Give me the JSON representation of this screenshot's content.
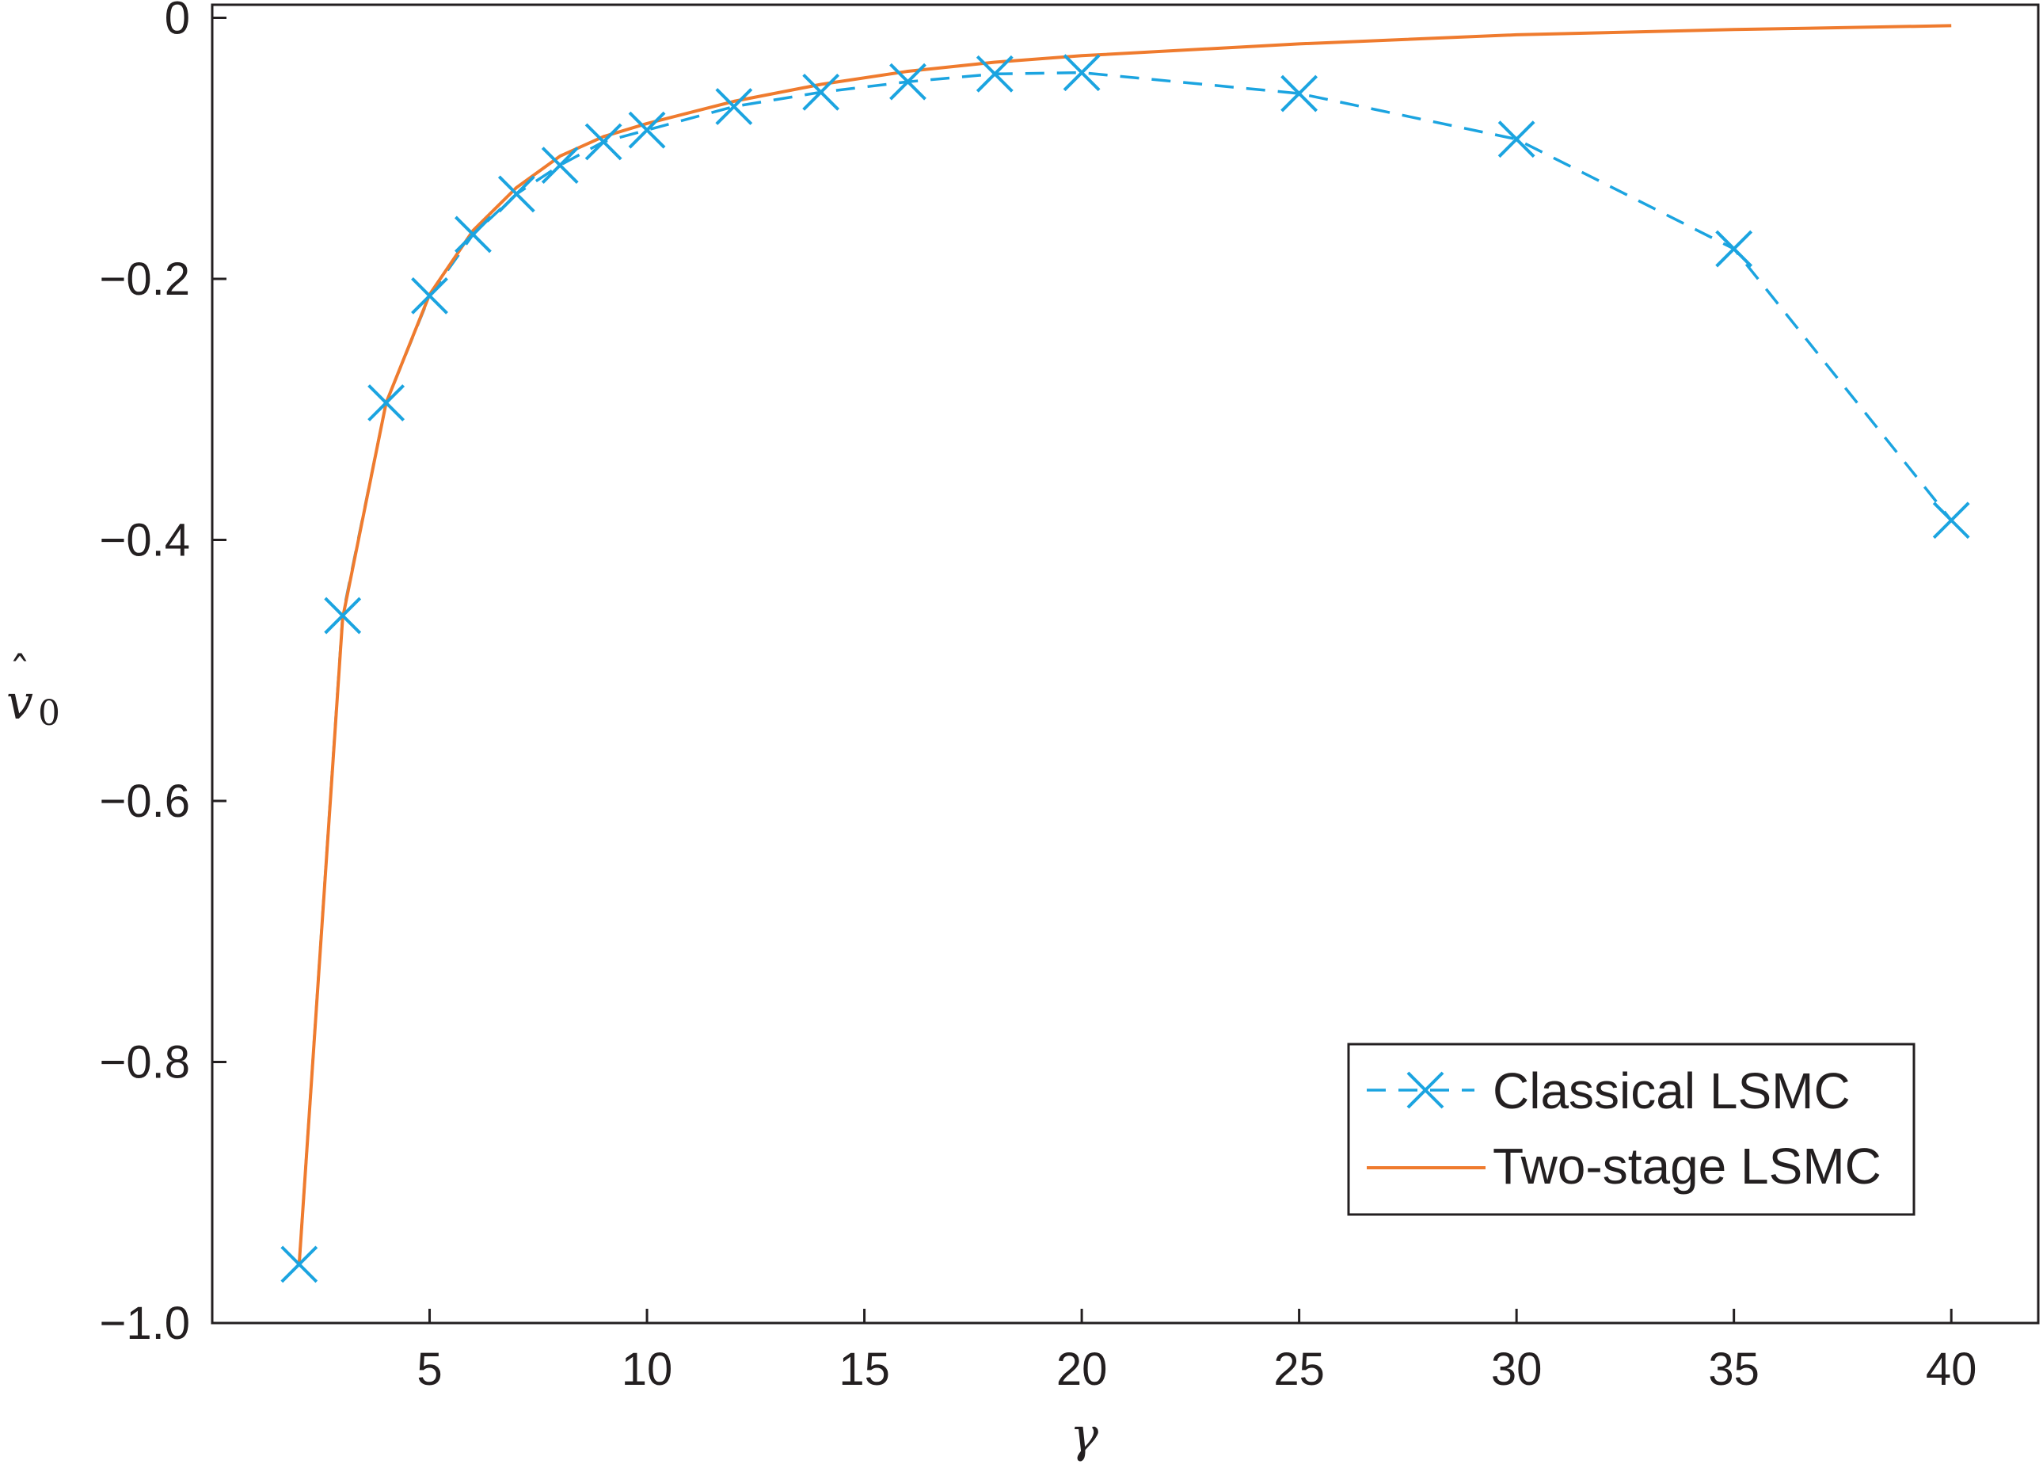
{
  "chart_data": {
    "type": "line",
    "title": "",
    "xlabel": "γ",
    "ylabel": "v̂0",
    "ylabel_parts": {
      "symbol": "v",
      "hat": "ˆ",
      "subscript": "0"
    },
    "xlim": [
      0,
      42
    ],
    "ylim": [
      -1.0,
      0.01
    ],
    "xticks": [
      5,
      10,
      15,
      20,
      25,
      30,
      35,
      40
    ],
    "xtick_labels": [
      "5",
      "10",
      "15",
      "20",
      "25",
      "30",
      "35",
      "40"
    ],
    "yticks": [
      0,
      -0.2,
      -0.4,
      -0.6,
      -0.8,
      -1.0
    ],
    "ytick_labels": [
      "0",
      "−0.2",
      "−0.4",
      "−0.6",
      "−0.8",
      "−1.0"
    ],
    "grid": false,
    "legend_position": "bottom-right",
    "series": [
      {
        "name": "Classical LSMC",
        "style": "dashed-x-markers",
        "color": "#1ba4e0",
        "x": [
          2,
          3,
          4,
          5,
          6,
          7,
          8,
          9,
          10,
          12,
          14,
          16,
          18,
          20,
          25,
          30,
          35,
          40
        ],
        "y": [
          -0.955,
          -0.458,
          -0.295,
          -0.213,
          -0.166,
          -0.135,
          -0.113,
          -0.095,
          -0.086,
          -0.068,
          -0.057,
          -0.049,
          -0.043,
          -0.042,
          -0.058,
          -0.093,
          -0.177,
          -0.385
        ]
      },
      {
        "name": "Two-stage LSMC",
        "style": "solid",
        "color": "#ef7b2e",
        "x": [
          2,
          3,
          4,
          5,
          6,
          7,
          8,
          9,
          10,
          12,
          14,
          16,
          18,
          20,
          25,
          30,
          35,
          40
        ],
        "y": [
          -0.955,
          -0.46,
          -0.295,
          -0.212,
          -0.163,
          -0.13,
          -0.106,
          -0.091,
          -0.081,
          -0.064,
          -0.051,
          -0.041,
          -0.034,
          -0.029,
          -0.02,
          -0.013,
          -0.009,
          -0.006
        ]
      }
    ]
  }
}
